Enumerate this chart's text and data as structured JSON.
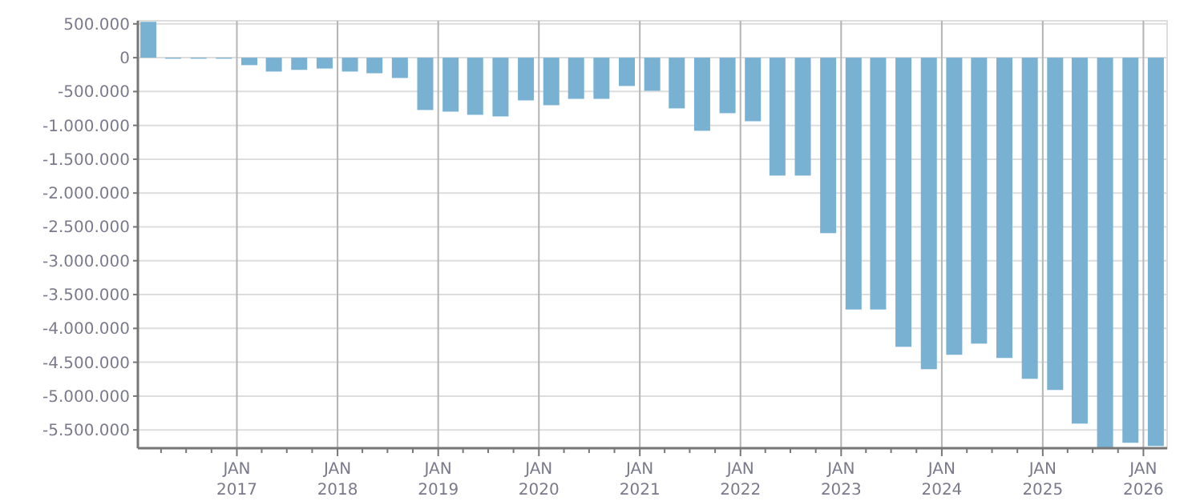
{
  "chart_data": {
    "type": "bar",
    "color": "#79b1d3",
    "grid": true,
    "x": [
      "2016-02-15",
      "2016-05-15",
      "2016-08-15",
      "2016-11-15",
      "2017-02-15",
      "2017-05-15",
      "2017-08-15",
      "2017-11-15",
      "2018-02-15",
      "2018-05-15",
      "2018-08-15",
      "2018-11-15",
      "2019-02-15",
      "2019-05-15",
      "2019-08-15",
      "2019-11-15",
      "2020-02-15",
      "2020-05-15",
      "2020-08-15",
      "2020-11-15",
      "2021-02-15",
      "2021-05-15",
      "2021-08-15",
      "2021-11-15",
      "2022-02-15",
      "2022-05-15",
      "2022-08-15",
      "2022-11-15",
      "2023-02-15",
      "2023-05-15",
      "2023-08-15",
      "2023-11-15",
      "2024-02-15",
      "2024-05-15",
      "2024-08-15",
      "2024-11-15",
      "2025-02-15",
      "2025-05-15",
      "2025-08-15",
      "2025-11-15",
      "2026-02-15"
    ],
    "values": [
      530000,
      -15000,
      -15000,
      -15000,
      -110000,
      -205000,
      -180000,
      -160000,
      -205000,
      -230000,
      -300000,
      -773000,
      -797000,
      -844000,
      -868000,
      -631000,
      -702000,
      -608000,
      -608000,
      -418000,
      -489000,
      -749000,
      -1080000,
      -820000,
      -939000,
      -1742000,
      -1742000,
      -2593000,
      -3721000,
      -3721000,
      -4272000,
      -4603000,
      -4390000,
      -4225000,
      -4437000,
      -4745000,
      -4910000,
      -5407000,
      -5760000,
      -5690000,
      -5738000
    ],
    "xlim": [
      "2016-01-08",
      "2026-03-28"
    ],
    "xticks": [
      {
        "value": "2016-04-01",
        "label": null
      },
      {
        "value": "2016-07-01",
        "label": null
      },
      {
        "value": "2016-10-01",
        "label": null
      },
      {
        "value": "2017-01-01",
        "label": "JAN 2017"
      },
      {
        "value": "2017-04-01",
        "label": null
      },
      {
        "value": "2017-07-01",
        "label": null
      },
      {
        "value": "2017-10-01",
        "label": null
      },
      {
        "value": "2018-01-01",
        "label": "JAN 2018"
      },
      {
        "value": "2018-04-01",
        "label": null
      },
      {
        "value": "2018-07-01",
        "label": null
      },
      {
        "value": "2018-10-01",
        "label": null
      },
      {
        "value": "2019-01-01",
        "label": "JAN 2019"
      },
      {
        "value": "2019-04-01",
        "label": null
      },
      {
        "value": "2019-07-01",
        "label": null
      },
      {
        "value": "2019-10-01",
        "label": null
      },
      {
        "value": "2020-01-01",
        "label": "JAN 2020"
      },
      {
        "value": "2020-04-01",
        "label": null
      },
      {
        "value": "2020-07-01",
        "label": null
      },
      {
        "value": "2020-10-01",
        "label": null
      },
      {
        "value": "2021-01-01",
        "label": "JAN 2021"
      },
      {
        "value": "2021-04-01",
        "label": null
      },
      {
        "value": "2021-07-01",
        "label": null
      },
      {
        "value": "2021-10-01",
        "label": null
      },
      {
        "value": "2022-01-01",
        "label": "JAN 2022"
      },
      {
        "value": "2022-04-01",
        "label": null
      },
      {
        "value": "2022-07-01",
        "label": null
      },
      {
        "value": "2022-10-01",
        "label": null
      },
      {
        "value": "2023-01-01",
        "label": "JAN 2023"
      },
      {
        "value": "2023-04-01",
        "label": null
      },
      {
        "value": "2023-07-01",
        "label": null
      },
      {
        "value": "2023-10-01",
        "label": null
      },
      {
        "value": "2024-01-01",
        "label": "JAN 2024"
      },
      {
        "value": "2024-04-01",
        "label": null
      },
      {
        "value": "2024-07-01",
        "label": null
      },
      {
        "value": "2024-10-01",
        "label": null
      },
      {
        "value": "2025-01-01",
        "label": "JAN 2025"
      },
      {
        "value": "2025-04-01",
        "label": null
      },
      {
        "value": "2025-07-01",
        "label": null
      },
      {
        "value": "2025-10-01",
        "label": null
      },
      {
        "value": "2026-01-01",
        "label": "JAN 2026"
      }
    ],
    "ylim": [
      -5770000,
      545000
    ],
    "yticks": [
      {
        "value": 500000,
        "label": "500.000"
      },
      {
        "value": 0,
        "label": "0"
      },
      {
        "value": -500000,
        "label": "-500.000"
      },
      {
        "value": -1000000,
        "label": "-1.000.000"
      },
      {
        "value": -1500000,
        "label": "-1.500.000"
      },
      {
        "value": -2000000,
        "label": "-2.000.000"
      },
      {
        "value": -2500000,
        "label": "-2.500.000"
      },
      {
        "value": -3000000,
        "label": "-3.000.000"
      },
      {
        "value": -3500000,
        "label": "-3.500.000"
      },
      {
        "value": -4000000,
        "label": "-4.000.000"
      },
      {
        "value": -4500000,
        "label": "-4.500.000"
      },
      {
        "value": -5000000,
        "label": "-5.000.000"
      },
      {
        "value": -5500000,
        "label": "-5.500.000"
      }
    ]
  }
}
